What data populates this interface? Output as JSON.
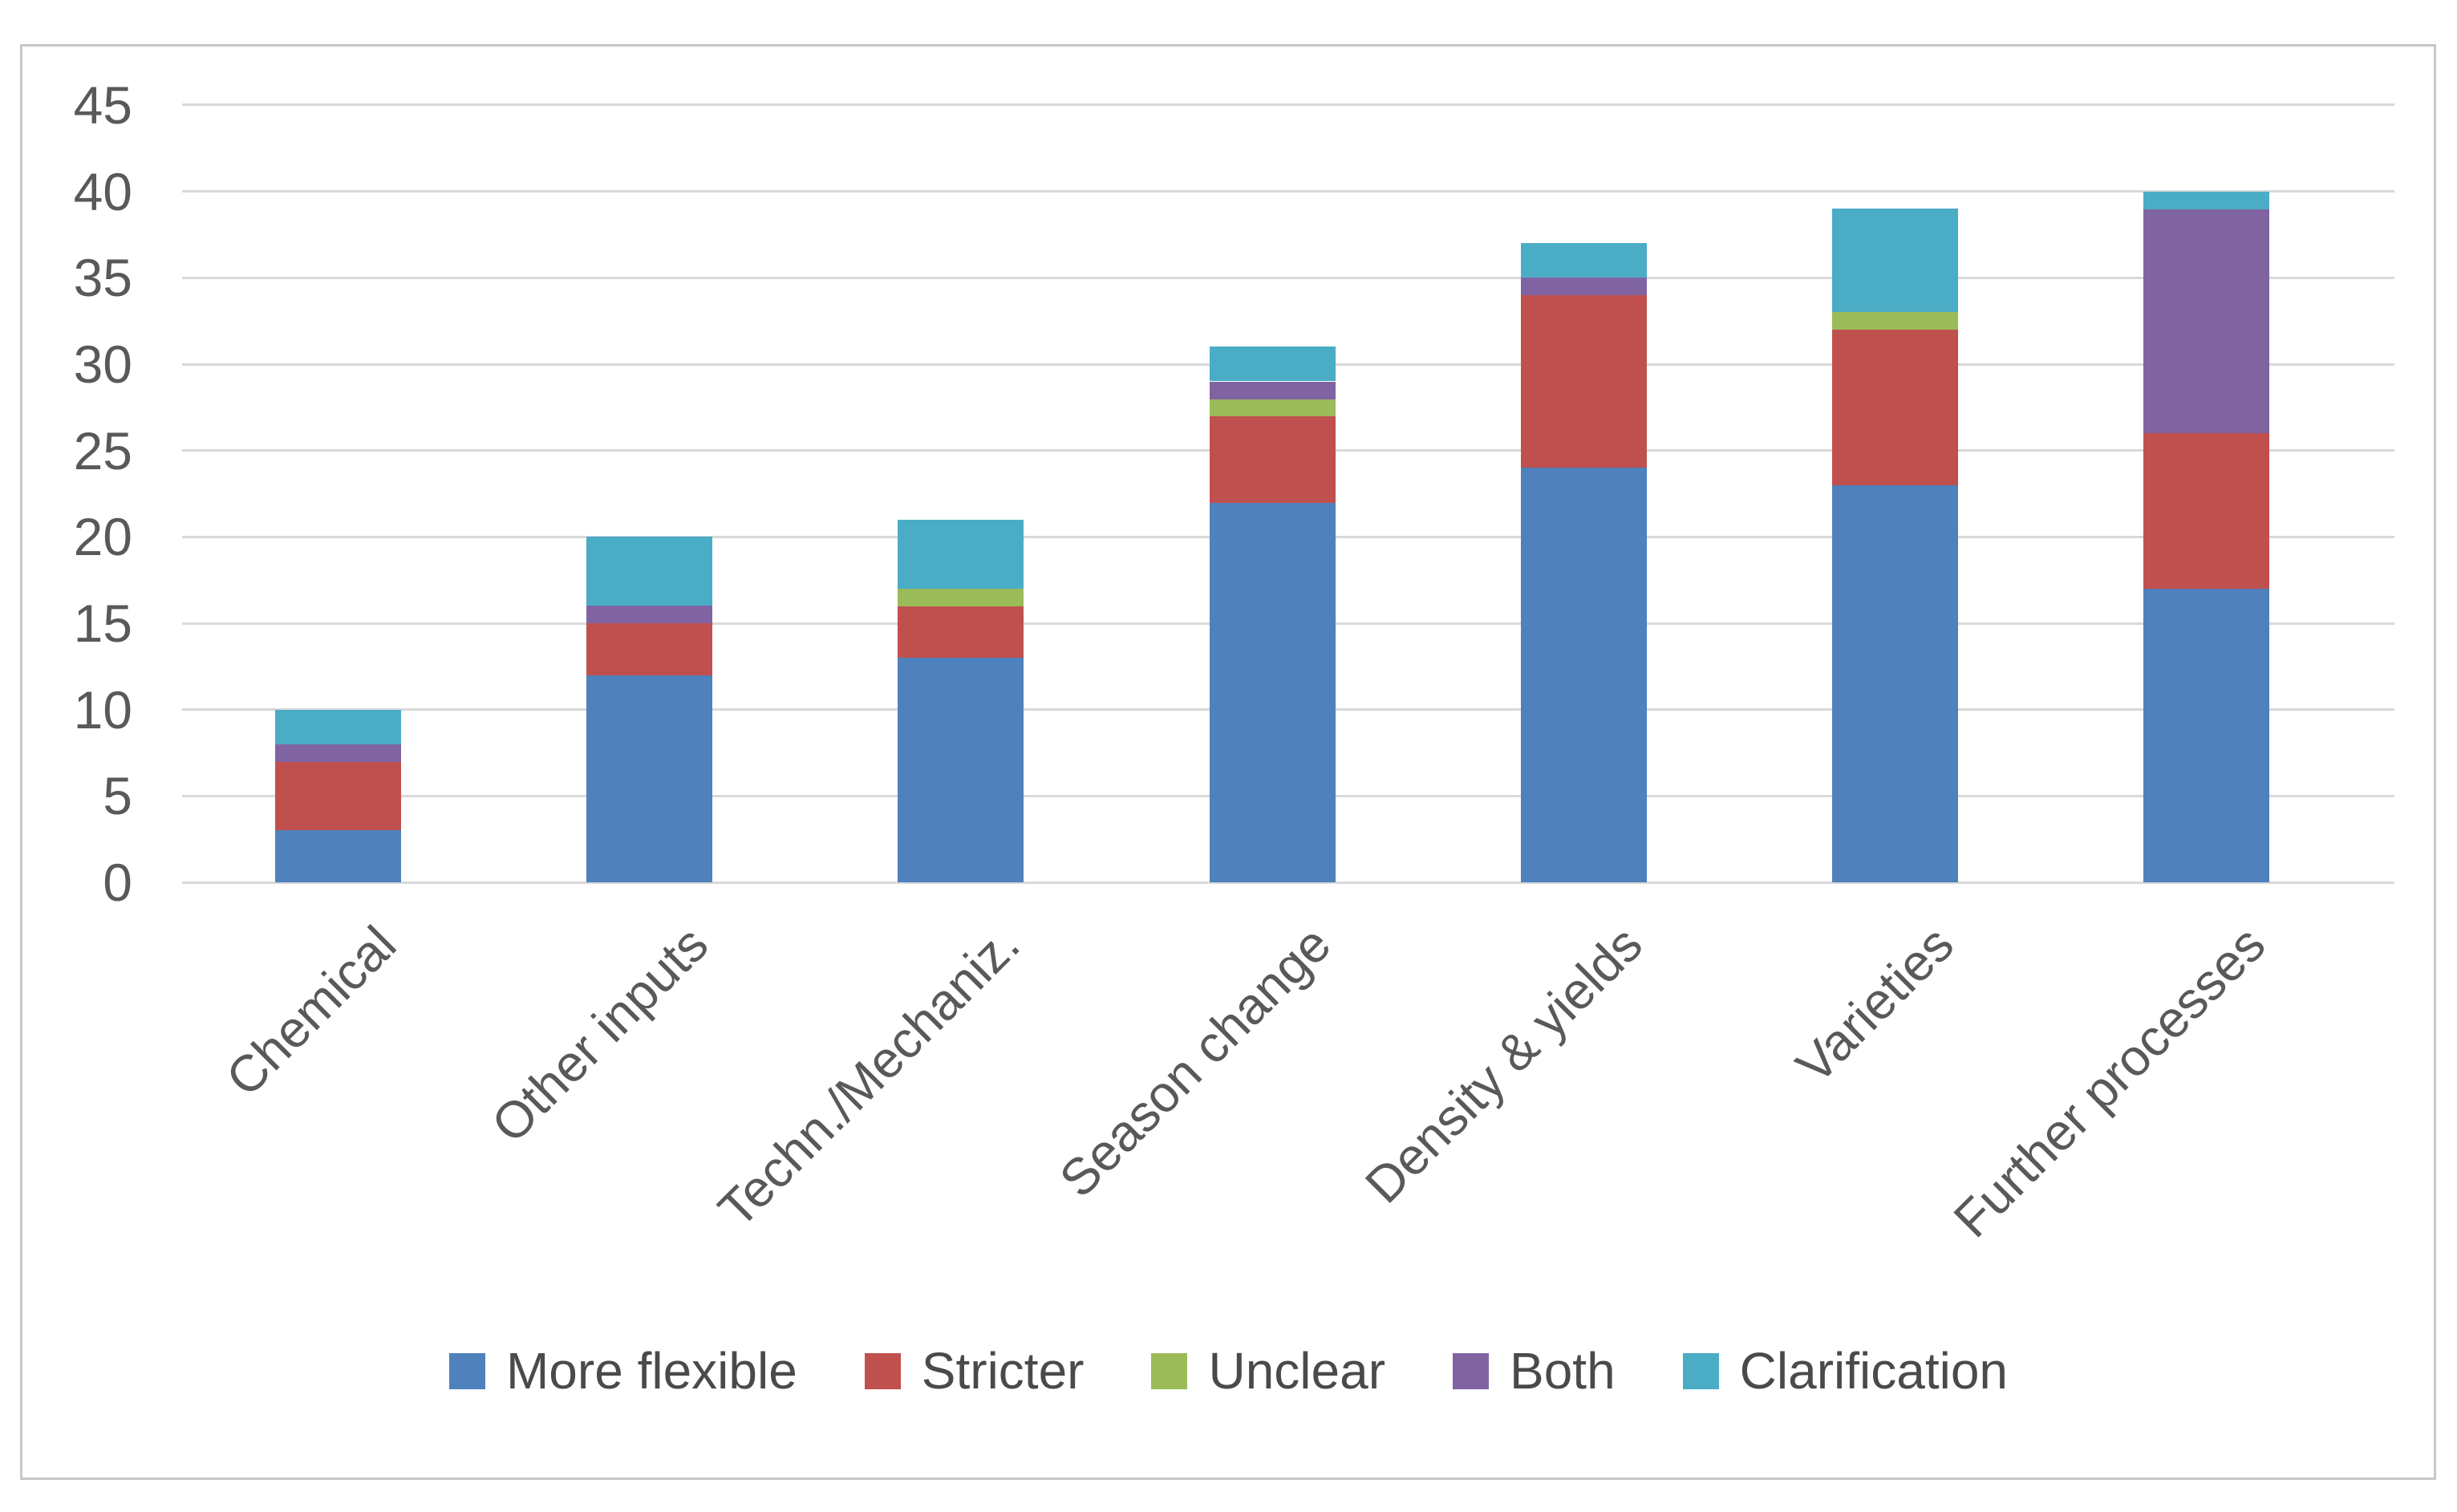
{
  "chart_data": {
    "type": "bar",
    "stacked": true,
    "title": "",
    "xlabel": "",
    "ylabel": "",
    "categories": [
      "Chemical",
      "Other inputs",
      "Techn./Mechaniz.",
      "Season change",
      "Density & yields",
      "Varieties",
      "Further processes"
    ],
    "series": [
      {
        "name": "More flexible",
        "color": "#4F81BD",
        "values": [
          3,
          12,
          13,
          22,
          24,
          23,
          17
        ]
      },
      {
        "name": "Stricter",
        "color": "#C0504D",
        "values": [
          4,
          3,
          3,
          5,
          10,
          9,
          9
        ]
      },
      {
        "name": "Unclear",
        "color": "#9BBB59",
        "values": [
          0,
          0,
          1,
          1,
          0,
          1,
          0
        ]
      },
      {
        "name": "Both",
        "color": "#8064A2",
        "values": [
          1,
          1,
          0,
          1,
          1,
          0,
          13
        ]
      },
      {
        "name": "Clarification",
        "color": "#4BACC6",
        "values": [
          2,
          4,
          4,
          2,
          2,
          6,
          1
        ]
      }
    ],
    "ylim": [
      0,
      45
    ],
    "y_ticks": [
      0,
      5,
      10,
      15,
      20,
      25,
      30,
      35,
      40,
      45
    ],
    "grid": true,
    "legend_position": "bottom",
    "x_label_rotation_deg": 45
  },
  "styles": {
    "grid_color": "#D9D9D9",
    "axis_text_color": "#595959",
    "chart_border_color": "#C7C7C7",
    "background_color": "#FFFFFF"
  }
}
